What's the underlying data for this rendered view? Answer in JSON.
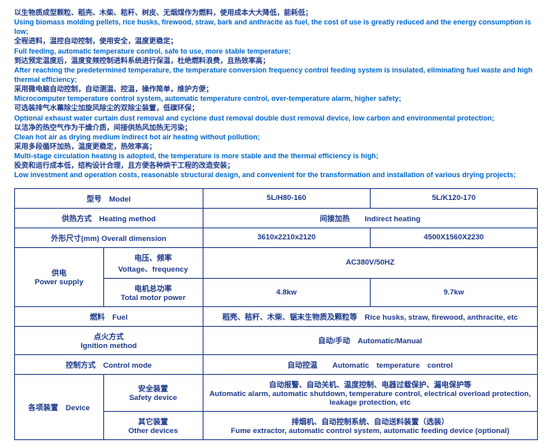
{
  "features": [
    {
      "cn": "以生物质成型颗粒、稻壳、木柴、秸秆、树皮、无烟煤作为燃料，使用成本大大降低，能耗低；",
      "en": "Using biomass molding pellets, rice husks, firewood, straw, bark and anthracite as fuel, the cost of use is greatly reduced and the energy consumption is low;"
    },
    {
      "cn": "全程进料，温控自动控制，使用安全，温度更稳定；",
      "en": "Full feeding, automatic temperature control, safe to use, more stable temperature;"
    },
    {
      "cn": "到达预定温度后，温度变频控制进料系统进行保温，杜绝燃料浪费，且热效率高；",
      "en": "After reaching the predetermined temperature, the temperature conversion frequency control feeding system is insulated, eliminating fuel waste and high thermal efficiency;"
    },
    {
      "cn": "采用微电脑自动控制，自动测温、控温，操作简单，维护方便；",
      "en": "Microcomputer temperature control system, automatic temperature control, over-temperature alarm, higher safety;"
    },
    {
      "cn": "可选装排气水幕除尘加旋风除尘的双除尘装置，低碳环保；",
      "en": "Optional exhaust water curtain dust removal and cyclone dust removal double dust removal device, low carbon and environmental protection;"
    },
    {
      "cn": "以洁净的热空气作为干燥介质，间接供热风加热无污染；",
      "en": "Clean hot air as drying medium indirect hot air heating without pollution;"
    },
    {
      "cn": "采用多段循环加热，温度更稳定，热效率高；",
      "en": "Multi-stage circulation heating is adopted, the temperature is more stable and the thermal efficiency is high;"
    },
    {
      "cn": "投资和运行成本低，结构设计合理，且方便各种烘干工程的改造安装；",
      "en": "Low investment and operation costs, reasonable structural design, and convenient for the transformation and installation of various drying projects;"
    }
  ],
  "t": {
    "model": "型号　Model",
    "m1": "5L/H80-160",
    "m2": "5L/K120-170",
    "heating": "供热方式　Heating method",
    "heating_v": "间接加热　　Indirect heating",
    "dim": "外形尺寸(mm) Overall dimension",
    "dim1": "3610x2210x2120",
    "dim2": "4500X1560X2230",
    "power": "供电\nPower supply",
    "volt": "电压、频率\nVoltage、frequency",
    "volt_v": "AC380V/50HZ",
    "motor": "电机总功率\nTotal motor power",
    "motor1": "4.8kw",
    "motor2": "9.7kw",
    "fuel": "燃料　Fuel",
    "fuel_v": "稻壳、秸秆、木柴、锯末生物质及颗粒等　Rice husks, straw, firewood, anthracite, etc",
    "ign": "点火方式\nIgnition method",
    "ign_v": "自动/手动　Automatic/Manual",
    "ctrl": "控制方式　Control mode",
    "ctrl_v": "自动控温　　Automatic　temperature　control",
    "device": "各项装置　Device",
    "safety": "安全装置\nSafety device",
    "safety_v": "自动报警、自动关机、温度控制、电器过载保护、漏电保护等\nAutomatic alarm, automatic shutdown, temperature control, electrical overload protection, leakage protection, etc",
    "other": "其它装置\nOther devices",
    "other_v": "排烟机、自动控制系统、自动送料装置（选装）\nFume extractor, automatic control system, automatic feeding device (optional)"
  }
}
